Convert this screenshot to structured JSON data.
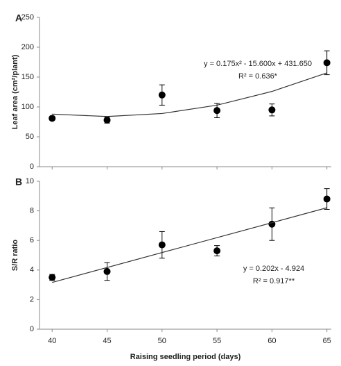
{
  "chart_data": [
    {
      "type": "scatter",
      "panel_label": "A",
      "ylabel": "Leaf area (cm²/plant)",
      "x": [
        40,
        45,
        50,
        55,
        60,
        65
      ],
      "values": [
        81,
        78,
        120,
        94,
        95,
        174
      ],
      "errors": [
        3,
        5,
        17,
        12,
        10,
        20
      ],
      "color": "#000000",
      "trendline": {
        "x": [
          40,
          45,
          50,
          55,
          60,
          65
        ],
        "values": [
          88,
          84,
          89,
          103,
          126,
          157
        ]
      },
      "equation": "y = 0.175x² - 15.600x + 431.650",
      "r_squared": "R² = 0.636*",
      "xlim": [
        38.85,
        65.4
      ],
      "xticks": [
        40,
        45,
        50,
        55,
        60,
        65
      ],
      "ylim": [
        0,
        250
      ],
      "yticks": [
        0,
        50,
        100,
        150,
        200,
        250
      ]
    },
    {
      "type": "scatter",
      "panel_label": "B",
      "ylabel": "S/R ratio",
      "xlabel": "Raising seedling period (days)",
      "x": [
        40,
        45,
        50,
        55,
        60,
        65
      ],
      "values": [
        3.5,
        3.9,
        5.7,
        5.3,
        7.1,
        8.8
      ],
      "errors": [
        0.2,
        0.6,
        0.9,
        0.35,
        1.1,
        0.7
      ],
      "color": "#000000",
      "trendline": {
        "x": [
          40,
          65
        ],
        "values": [
          3.16,
          8.21
        ]
      },
      "equation": "y = 0.202x - 4.924",
      "r_squared": "R² = 0.917**",
      "xlim": [
        38.85,
        65.4
      ],
      "xticks": [
        40,
        45,
        50,
        55,
        60,
        65
      ],
      "ylim": [
        0,
        10
      ],
      "yticks": [
        0,
        2,
        4,
        6,
        8,
        10
      ]
    }
  ]
}
